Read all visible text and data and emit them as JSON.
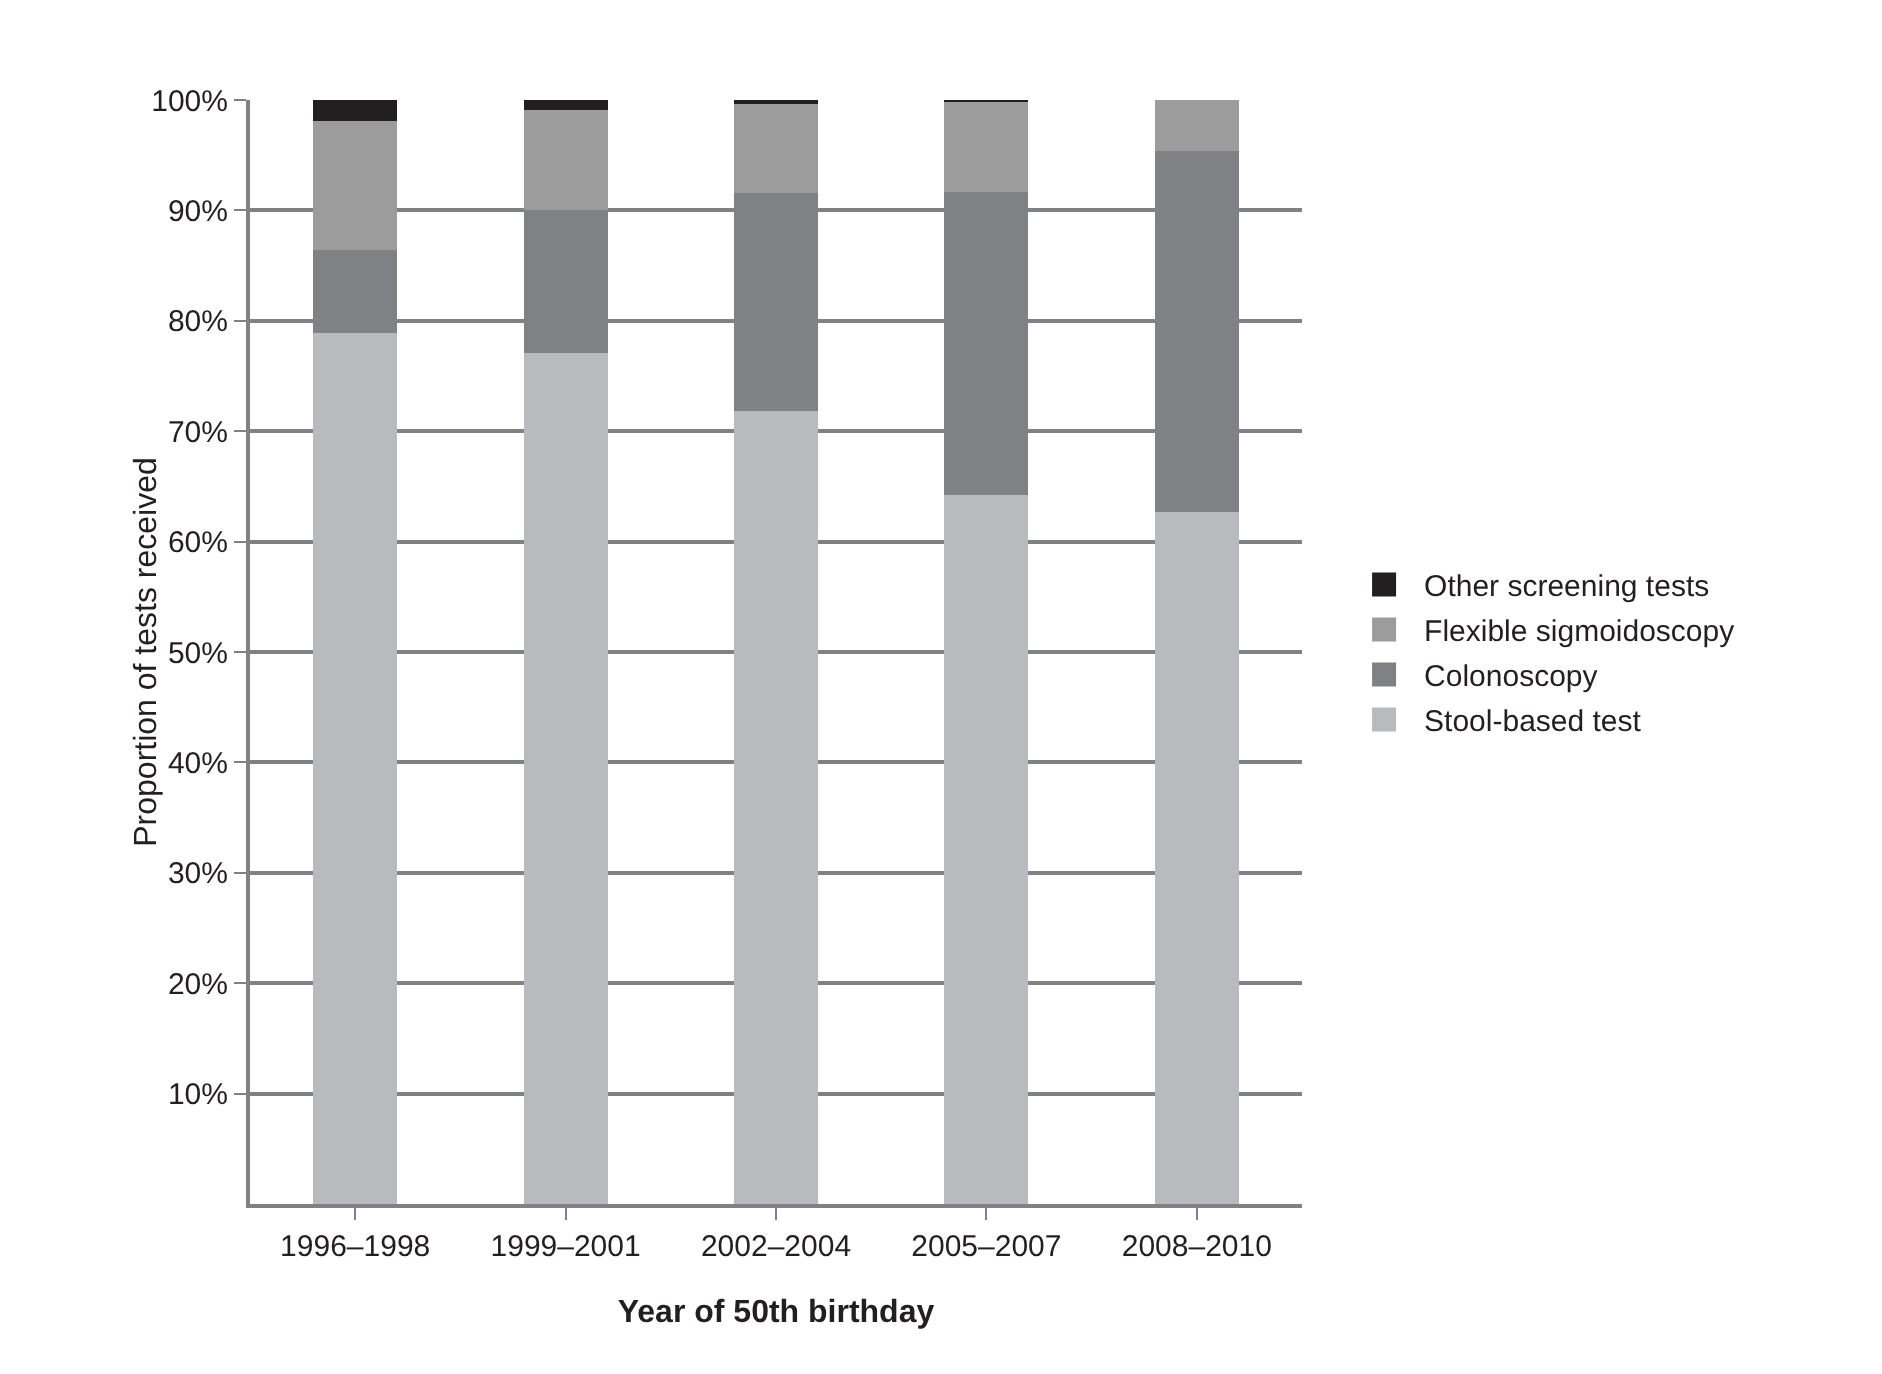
{
  "chart_data": {
    "type": "bar",
    "stacked": true,
    "xlabel": "Year of 50th birthday",
    "ylabel": "Proportion of tests received",
    "categories": [
      "1996–1998",
      "1999–2001",
      "2002–2004",
      "2005–2007",
      "2008–2010"
    ],
    "series": [
      {
        "name": "Stool-based test",
        "color": "#b9babd",
        "values": [
          78.9,
          77.1,
          71.8,
          64.2,
          62.7
        ]
      },
      {
        "name": "Colonoscopy",
        "color": "#808184",
        "values": [
          7.5,
          12.9,
          19.8,
          27.5,
          32.7
        ]
      },
      {
        "name": "Flexible sigmoidoscopy",
        "color": "#9c9c9c",
        "values": [
          11.7,
          9.1,
          8.0,
          8.2,
          4.6
        ]
      },
      {
        "name": "Other screening tests",
        "color": "#231f20",
        "values": [
          1.9,
          0.9,
          0.4,
          0.1,
          0
        ]
      }
    ],
    "ylim": [
      0,
      100
    ],
    "yticks": [
      {
        "value": 10,
        "label": "10%"
      },
      {
        "value": 20,
        "label": "20%"
      },
      {
        "value": 30,
        "label": "30%"
      },
      {
        "value": 40,
        "label": "40%"
      },
      {
        "value": 50,
        "label": "50%"
      },
      {
        "value": 60,
        "label": "60%"
      },
      {
        "value": 70,
        "label": "70%"
      },
      {
        "value": 80,
        "label": "80%"
      },
      {
        "value": 90,
        "label": "90%"
      },
      {
        "value": 100,
        "label": "100%"
      }
    ],
    "grid": "y",
    "legend": "right"
  }
}
